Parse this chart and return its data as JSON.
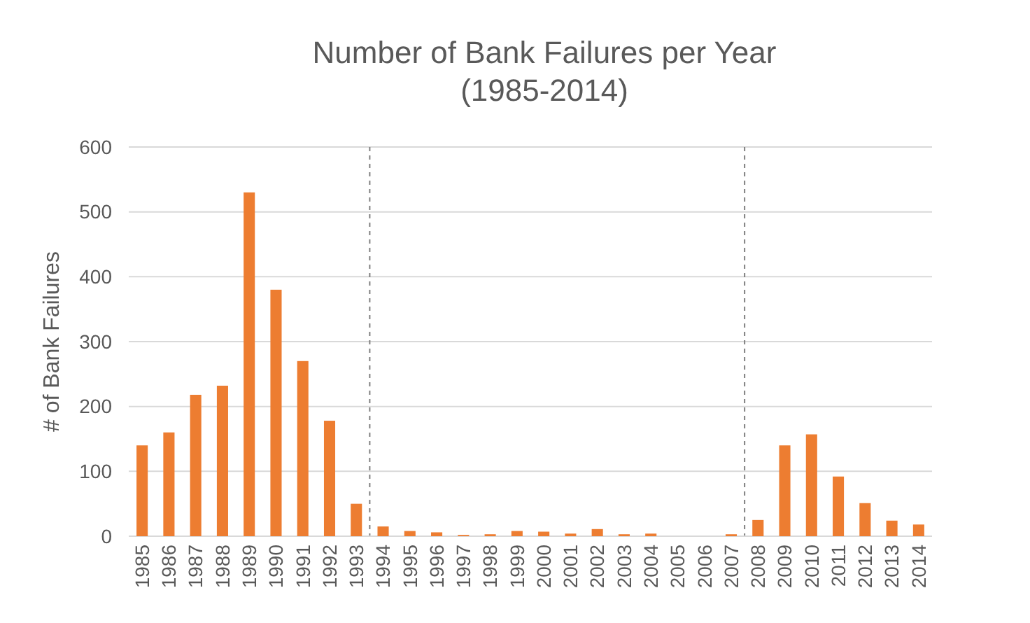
{
  "chart_data": {
    "type": "bar",
    "title": "Number of Bank Failures per Year\n(1985-2014)",
    "ylabel": "# of Bank Failures",
    "x": [
      1985,
      1986,
      1987,
      1988,
      1989,
      1990,
      1991,
      1992,
      1993,
      1994,
      1995,
      1996,
      1997,
      1998,
      1999,
      2000,
      2001,
      2002,
      2003,
      2004,
      2005,
      2006,
      2007,
      2008,
      2009,
      2010,
      2011,
      2012,
      2013,
      2014
    ],
    "values": [
      140,
      160,
      218,
      232,
      530,
      380,
      270,
      178,
      50,
      15,
      8,
      6,
      2,
      3,
      8,
      7,
      4,
      11,
      3,
      4,
      0,
      0,
      3,
      25,
      140,
      157,
      92,
      51,
      24,
      18
    ],
    "color": "#ed7d31",
    "xlim": [
      1984.5,
      2014.5
    ],
    "xticks": [
      1985,
      1986,
      1987,
      1988,
      1989,
      1990,
      1991,
      1992,
      1993,
      1994,
      1995,
      1996,
      1997,
      1998,
      1999,
      2000,
      2001,
      2002,
      2003,
      2004,
      2005,
      2006,
      2007,
      2008,
      2009,
      2010,
      2011,
      2012,
      2013,
      2014
    ],
    "ylim": [
      0,
      600
    ],
    "yticks": [
      0,
      100,
      200,
      300,
      400,
      500,
      600
    ],
    "grid": "y",
    "ref_lines": [
      {
        "axis": "x",
        "value": 1993.5,
        "color": "#7f7f7f",
        "line_style": "dashed"
      },
      {
        "axis": "x",
        "value": 2007.5,
        "color": "#7f7f7f",
        "line_style": "dashed"
      }
    ]
  }
}
